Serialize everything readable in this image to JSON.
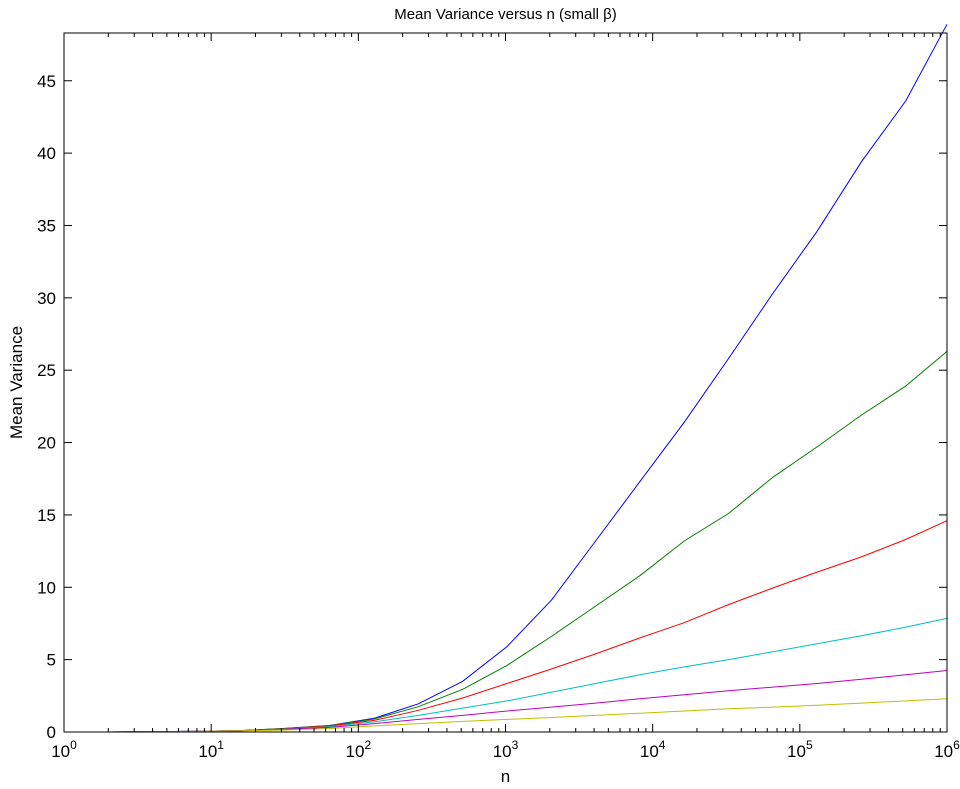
{
  "chart_data": {
    "type": "line",
    "title": "Mean Variance versus n (small β)",
    "xlabel": "n",
    "ylabel": "Mean Variance",
    "xscale": "log",
    "xlim": [
      1,
      1000000
    ],
    "ylim": [
      0,
      48.3
    ],
    "grid": false,
    "x_ticks": [
      {
        "base": "10",
        "exp": "0"
      },
      {
        "base": "10",
        "exp": "1"
      },
      {
        "base": "10",
        "exp": "2"
      },
      {
        "base": "10",
        "exp": "3"
      },
      {
        "base": "10",
        "exp": "4"
      },
      {
        "base": "10",
        "exp": "5"
      },
      {
        "base": "10",
        "exp": "6"
      }
    ],
    "y_ticks": [
      "0",
      "5",
      "10",
      "15",
      "20",
      "25",
      "30",
      "35",
      "40",
      "45"
    ],
    "x": [
      1,
      2,
      4,
      8,
      16,
      32,
      64,
      128,
      256,
      512,
      1024,
      2048,
      4096,
      8192,
      16384,
      32768,
      65536,
      131072,
      262144,
      524288,
      1048576
    ],
    "series": [
      {
        "color": "#0000ff",
        "values": [
          0,
          0,
          0.02,
          0.05,
          0.1,
          0.25,
          0.45,
          0.95,
          1.95,
          3.5,
          5.9,
          9.1,
          13.2,
          17.3,
          21.4,
          25.8,
          30.3,
          34.6,
          39.4,
          43.6,
          48.9
        ]
      },
      {
        "color": "#008000",
        "values": [
          0,
          0,
          0.02,
          0.05,
          0.1,
          0.25,
          0.45,
          0.9,
          1.75,
          2.95,
          4.6,
          6.6,
          8.7,
          10.8,
          13.2,
          15.1,
          17.6,
          19.7,
          21.9,
          23.9,
          26.3
        ]
      },
      {
        "color": "#ff0000",
        "values": [
          0,
          0,
          0.02,
          0.05,
          0.1,
          0.22,
          0.42,
          0.8,
          1.5,
          2.35,
          3.35,
          4.35,
          5.4,
          6.5,
          7.55,
          8.8,
          9.95,
          11.05,
          12.1,
          13.3,
          14.6
        ]
      },
      {
        "color": "#00bfbf",
        "values": [
          0,
          0,
          0.02,
          0.05,
          0.1,
          0.2,
          0.37,
          0.7,
          1.15,
          1.65,
          2.15,
          2.75,
          3.35,
          3.95,
          4.5,
          5.0,
          5.55,
          6.1,
          6.65,
          7.25,
          7.85
        ]
      },
      {
        "color": "#bf00bf",
        "values": [
          0,
          0,
          0.02,
          0.05,
          0.1,
          0.18,
          0.32,
          0.58,
          0.87,
          1.15,
          1.45,
          1.72,
          2.0,
          2.3,
          2.58,
          2.85,
          3.1,
          3.35,
          3.65,
          3.95,
          4.25
        ]
      },
      {
        "color": "#bfbf00",
        "values": [
          0,
          0,
          0.02,
          0.04,
          0.08,
          0.14,
          0.24,
          0.42,
          0.58,
          0.73,
          0.87,
          1.0,
          1.15,
          1.3,
          1.45,
          1.6,
          1.72,
          1.85,
          2.0,
          2.15,
          2.3
        ]
      }
    ]
  }
}
